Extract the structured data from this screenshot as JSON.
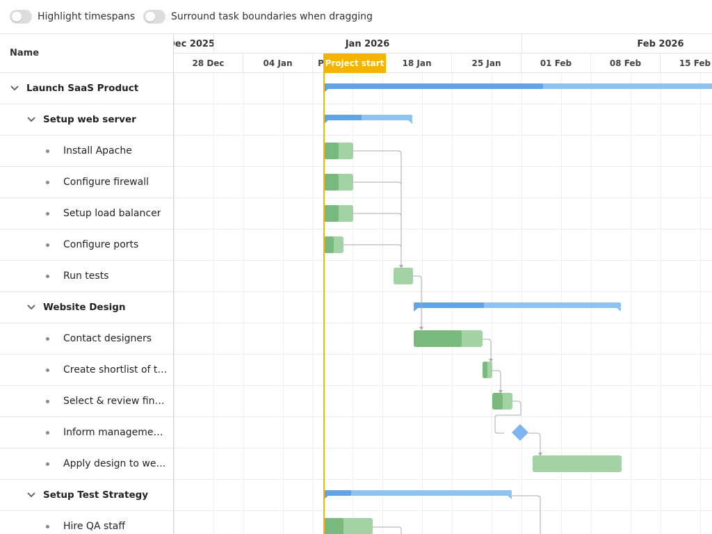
{
  "toolbar": {
    "highlight_label": "Highlight timespans",
    "surround_label": "Surround task boundaries when dragging"
  },
  "grid": {
    "name_header": "Name"
  },
  "tasks": [
    {
      "label": "Launch SaaS Product",
      "type": "parent",
      "level": 0
    },
    {
      "label": "Setup web server",
      "type": "parent",
      "level": 1
    },
    {
      "label": "Install Apache",
      "type": "leaf",
      "level": 2
    },
    {
      "label": "Configure firewall",
      "type": "leaf",
      "level": 2
    },
    {
      "label": "Setup load balancer",
      "type": "leaf",
      "level": 2
    },
    {
      "label": "Configure ports",
      "type": "leaf",
      "level": 2
    },
    {
      "label": "Run tests",
      "type": "leaf",
      "level": 2
    },
    {
      "label": "Website Design",
      "type": "parent",
      "level": 1
    },
    {
      "label": "Contact designers",
      "type": "leaf",
      "level": 2
    },
    {
      "label": "Create shortlist of t…",
      "type": "leaf",
      "level": 2
    },
    {
      "label": "Select & review fin…",
      "type": "leaf",
      "level": 2
    },
    {
      "label": "Inform manageme…",
      "type": "leaf",
      "level": 2
    },
    {
      "label": "Apply design to we…",
      "type": "leaf",
      "level": 2
    },
    {
      "label": "Setup Test Strategy",
      "type": "parent",
      "level": 1
    },
    {
      "label": "Hire QA staff",
      "type": "leaf",
      "level": 2
    }
  ],
  "timeline": {
    "months": [
      {
        "label": "Dec 2025"
      },
      {
        "label": "Jan 2026"
      },
      {
        "label": "Feb 2026"
      }
    ],
    "weeks": [
      "28 Dec",
      "04 Jan",
      "Project start",
      "18 Jan",
      "25 Jan",
      "01 Feb",
      "08 Feb",
      "15 Feb"
    ],
    "project_start_label": "Project start"
  },
  "colors": {
    "accent": "#f5b400",
    "summary_bar": "#90c2f0",
    "summary_progress": "#62a3e6",
    "task_bar": "#a3d2a5",
    "task_progress": "#7ab97e",
    "milestone": "#7fb5ee",
    "dependency": "#aaaaaa"
  }
}
